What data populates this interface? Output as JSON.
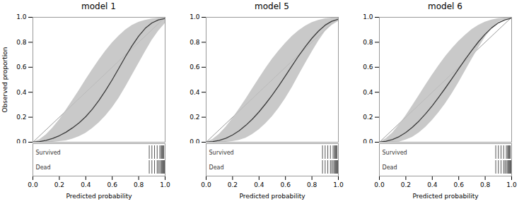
{
  "chart_data": [
    {
      "type": "line",
      "title": "model 1",
      "xlabel": "Predicted probability",
      "ylabel": "Observed proportion",
      "xlim": [
        0.0,
        1.0
      ],
      "ylim": [
        0.0,
        1.0
      ],
      "xticks": [
        {
          "value": 0.0,
          "label": "0.0"
        },
        {
          "value": 0.2,
          "label": "0.2"
        },
        {
          "value": 0.4,
          "label": "0.4"
        },
        {
          "value": 0.6,
          "label": "0.6"
        },
        {
          "value": 0.8,
          "label": "0.8"
        },
        {
          "value": 1.0,
          "label": "1.0"
        }
      ],
      "yticks": [
        {
          "value": 0.0,
          "label": "0.0"
        },
        {
          "value": 0.2,
          "label": "0.2"
        },
        {
          "value": 0.4,
          "label": "0.4"
        },
        {
          "value": 0.6,
          "label": "0.6"
        },
        {
          "value": 0.8,
          "label": "0.8"
        },
        {
          "value": 1.0,
          "label": "1.0"
        }
      ],
      "grid": false,
      "x": [
        0.0,
        0.05,
        0.1,
        0.15,
        0.2,
        0.25,
        0.3,
        0.35,
        0.4,
        0.45,
        0.5,
        0.55,
        0.6,
        0.65,
        0.7,
        0.75,
        0.8,
        0.85,
        0.9,
        0.95,
        1.0
      ],
      "values": [
        0.0,
        0.005,
        0.015,
        0.03,
        0.052,
        0.08,
        0.115,
        0.155,
        0.205,
        0.265,
        0.335,
        0.415,
        0.5,
        0.592,
        0.685,
        0.772,
        0.85,
        0.912,
        0.955,
        0.98,
        0.99
      ],
      "color": "#3a3a3a",
      "band": {
        "upper": [
          0.0,
          0.02,
          0.06,
          0.115,
          0.18,
          0.255,
          0.335,
          0.415,
          0.5,
          0.58,
          0.658,
          0.73,
          0.795,
          0.85,
          0.898,
          0.935,
          0.96,
          0.976,
          0.987,
          0.993,
          0.997
        ],
        "lower": [
          0.0,
          0.0,
          0.0,
          0.0,
          0.005,
          0.012,
          0.025,
          0.045,
          0.072,
          0.11,
          0.155,
          0.21,
          0.275,
          0.352,
          0.44,
          0.535,
          0.63,
          0.725,
          0.815,
          0.89,
          0.95
        ],
        "color": "#c0c0c0"
      },
      "reference": {
        "x": [
          0,
          1
        ],
        "y": [
          0,
          1
        ],
        "color": "#999999"
      },
      "rug": {
        "color": "#555555",
        "rows": [
          {
            "label": "Survived",
            "x": [
              0.88,
              0.9,
              0.92,
              0.94,
              0.96,
              0.97,
              0.975,
              0.98,
              0.985,
              0.99
            ]
          },
          {
            "label": "Dead",
            "x": [
              0.88,
              0.9,
              0.92,
              0.94,
              0.95,
              0.96,
              0.97,
              0.975,
              0.98,
              0.985,
              0.99,
              0.995
            ]
          }
        ]
      }
    },
    {
      "type": "line",
      "title": "model 5",
      "xlabel": "Predicted probability",
      "xlim": [
        0.0,
        1.0
      ],
      "ylim": [
        0.0,
        1.0
      ],
      "xticks": [
        {
          "value": 0.0,
          "label": "0.0"
        },
        {
          "value": 0.2,
          "label": "0.2"
        },
        {
          "value": 0.4,
          "label": "0.4"
        },
        {
          "value": 0.6,
          "label": "0.6"
        },
        {
          "value": 0.8,
          "label": "0.8"
        },
        {
          "value": 1.0,
          "label": "1.0"
        }
      ],
      "yticks": [
        {
          "value": 0.0,
          "label": "0.0"
        },
        {
          "value": 0.2,
          "label": "0.2"
        },
        {
          "value": 0.4,
          "label": "0.4"
        },
        {
          "value": 0.6,
          "label": "0.6"
        },
        {
          "value": 0.8,
          "label": "0.8"
        },
        {
          "value": 1.0,
          "label": "1.0"
        }
      ],
      "grid": false,
      "x": [
        0.0,
        0.05,
        0.1,
        0.15,
        0.2,
        0.25,
        0.3,
        0.35,
        0.4,
        0.45,
        0.5,
        0.55,
        0.6,
        0.65,
        0.7,
        0.75,
        0.8,
        0.85,
        0.9,
        0.95,
        1.0
      ],
      "values": [
        0.0,
        0.005,
        0.015,
        0.032,
        0.058,
        0.092,
        0.135,
        0.185,
        0.243,
        0.308,
        0.378,
        0.453,
        0.532,
        0.612,
        0.692,
        0.765,
        0.832,
        0.89,
        0.937,
        0.968,
        0.985
      ],
      "color": "#3a3a3a",
      "band": {
        "upper": [
          0.0,
          0.022,
          0.065,
          0.122,
          0.19,
          0.265,
          0.345,
          0.428,
          0.51,
          0.59,
          0.665,
          0.732,
          0.793,
          0.847,
          0.893,
          0.93,
          0.957,
          0.976,
          0.988,
          0.994,
          0.998
        ],
        "lower": [
          0.0,
          0.0,
          0.0,
          0.0,
          0.005,
          0.015,
          0.032,
          0.062,
          0.1,
          0.148,
          0.205,
          0.272,
          0.35,
          0.438,
          0.535,
          0.63,
          0.722,
          0.81,
          0.885,
          0.935,
          0.968
        ],
        "color": "#c0c0c0"
      },
      "reference": {
        "x": [
          0,
          1
        ],
        "y": [
          0,
          1
        ],
        "color": "#999999"
      },
      "rug": {
        "color": "#555555",
        "rows": [
          {
            "label": "Survived",
            "x": [
              0.88,
              0.9,
              0.92,
              0.94,
              0.96,
              0.97,
              0.975,
              0.98,
              0.985,
              0.99
            ]
          },
          {
            "label": "Dead",
            "x": [
              0.88,
              0.9,
              0.92,
              0.94,
              0.95,
              0.96,
              0.97,
              0.975,
              0.98,
              0.985,
              0.99,
              0.995
            ]
          }
        ]
      }
    },
    {
      "type": "line",
      "title": "model 6",
      "xlabel": "Predicted probability",
      "xlim": [
        0.0,
        1.0
      ],
      "ylim": [
        0.0,
        1.0
      ],
      "xticks": [
        {
          "value": 0.0,
          "label": "0.0"
        },
        {
          "value": 0.2,
          "label": "0.2"
        },
        {
          "value": 0.4,
          "label": "0.4"
        },
        {
          "value": 0.6,
          "label": "0.6"
        },
        {
          "value": 0.8,
          "label": "0.8"
        },
        {
          "value": 1.0,
          "label": "1.0"
        }
      ],
      "yticks": [
        {
          "value": 0.0,
          "label": "0.0"
        },
        {
          "value": 0.2,
          "label": "0.2"
        },
        {
          "value": 0.4,
          "label": "0.4"
        },
        {
          "value": 0.6,
          "label": "0.6"
        },
        {
          "value": 0.8,
          "label": "0.8"
        },
        {
          "value": 1.0,
          "label": "1.0"
        }
      ],
      "grid": false,
      "x": [
        0.0,
        0.05,
        0.1,
        0.15,
        0.2,
        0.25,
        0.3,
        0.35,
        0.4,
        0.45,
        0.5,
        0.55,
        0.6,
        0.65,
        0.7,
        0.75,
        0.8,
        0.85,
        0.9,
        0.95,
        1.0
      ],
      "values": [
        0.0,
        0.008,
        0.022,
        0.045,
        0.078,
        0.12,
        0.17,
        0.228,
        0.292,
        0.362,
        0.435,
        0.511,
        0.588,
        0.664,
        0.737,
        0.805,
        0.865,
        0.916,
        0.956,
        0.98,
        0.993
      ],
      "color": "#3a3a3a",
      "band": {
        "upper": [
          0.0,
          0.028,
          0.075,
          0.14,
          0.212,
          0.292,
          0.375,
          0.458,
          0.538,
          0.614,
          0.686,
          0.75,
          0.808,
          0.858,
          0.902,
          0.937,
          0.962,
          0.979,
          0.99,
          0.995,
          0.998
        ],
        "lower": [
          0.0,
          0.0,
          0.0,
          0.002,
          0.018,
          0.04,
          0.075,
          0.12,
          0.175,
          0.238,
          0.31,
          0.39,
          0.478,
          0.572,
          0.665,
          0.755,
          0.84,
          0.91,
          0.96,
          0.982,
          0.99
        ],
        "color": "#c0c0c0"
      },
      "reference": {
        "x": [
          0,
          1
        ],
        "y": [
          0,
          1
        ],
        "color": "#999999"
      },
      "rug": {
        "color": "#555555",
        "rows": [
          {
            "label": "Survived",
            "x": [
              0.88,
              0.9,
              0.92,
              0.94,
              0.96,
              0.97,
              0.975,
              0.98,
              0.985,
              0.99
            ]
          },
          {
            "label": "Dead",
            "x": [
              0.88,
              0.9,
              0.92,
              0.94,
              0.95,
              0.96,
              0.97,
              0.975,
              0.98,
              0.985,
              0.99,
              0.995
            ]
          }
        ]
      }
    }
  ]
}
